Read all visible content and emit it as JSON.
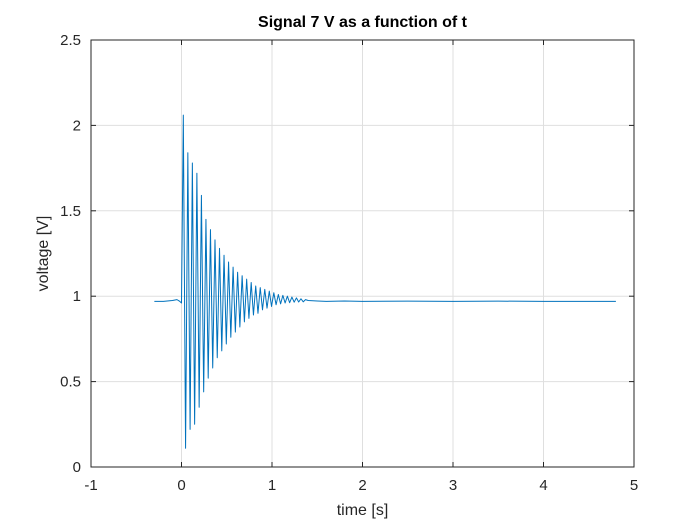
{
  "chart_data": {
    "type": "line",
    "title": "Signal 7 V as a function of t",
    "xlabel": "time [s]",
    "ylabel": "voltage [V]",
    "xlim": [
      -1,
      5
    ],
    "ylim": [
      0,
      2.5
    ],
    "xticks": [
      -1,
      0,
      1,
      2,
      3,
      4,
      5
    ],
    "yticks": [
      0,
      0.5,
      1,
      1.5,
      2,
      2.5
    ],
    "xtick_labels": [
      "-1",
      "0",
      "1",
      "2",
      "3",
      "4",
      "5"
    ],
    "ytick_labels": [
      "0",
      "0.5",
      "1",
      "1.5",
      "2",
      "2.5"
    ],
    "grid": true,
    "series": [
      {
        "color": "#0072BD",
        "x": [
          -0.3,
          -0.2,
          -0.1,
          -0.05,
          -0.02,
          0.0,
          0.02,
          0.045,
          0.07,
          0.095,
          0.12,
          0.145,
          0.17,
          0.195,
          0.22,
          0.245,
          0.27,
          0.295,
          0.32,
          0.345,
          0.37,
          0.395,
          0.42,
          0.445,
          0.47,
          0.495,
          0.52,
          0.545,
          0.57,
          0.595,
          0.62,
          0.645,
          0.67,
          0.695,
          0.72,
          0.745,
          0.77,
          0.795,
          0.82,
          0.845,
          0.87,
          0.895,
          0.92,
          0.945,
          0.97,
          0.995,
          1.02,
          1.045,
          1.07,
          1.095,
          1.12,
          1.145,
          1.17,
          1.195,
          1.22,
          1.245,
          1.27,
          1.295,
          1.32,
          1.345,
          1.37,
          1.4,
          1.5,
          1.6,
          1.8,
          2.0,
          2.5,
          3.0,
          3.5,
          4.0,
          4.5,
          4.8
        ],
        "y": [
          0.97,
          0.97,
          0.975,
          0.98,
          0.97,
          0.96,
          2.06,
          0.11,
          1.84,
          0.22,
          1.78,
          0.25,
          1.72,
          0.35,
          1.59,
          0.44,
          1.45,
          0.52,
          1.39,
          0.58,
          1.33,
          0.64,
          1.28,
          0.68,
          1.24,
          0.72,
          1.2,
          0.76,
          1.17,
          0.79,
          1.14,
          0.82,
          1.12,
          0.85,
          1.1,
          0.87,
          1.08,
          0.89,
          1.06,
          0.9,
          1.05,
          0.92,
          1.04,
          0.93,
          1.03,
          0.94,
          1.02,
          0.95,
          1.01,
          0.955,
          1.005,
          0.96,
          1.0,
          0.962,
          0.995,
          0.965,
          0.99,
          0.966,
          0.985,
          0.967,
          0.98,
          0.975,
          0.972,
          0.97,
          0.972,
          0.97,
          0.971,
          0.97,
          0.971,
          0.97,
          0.97,
          0.97
        ]
      }
    ]
  }
}
